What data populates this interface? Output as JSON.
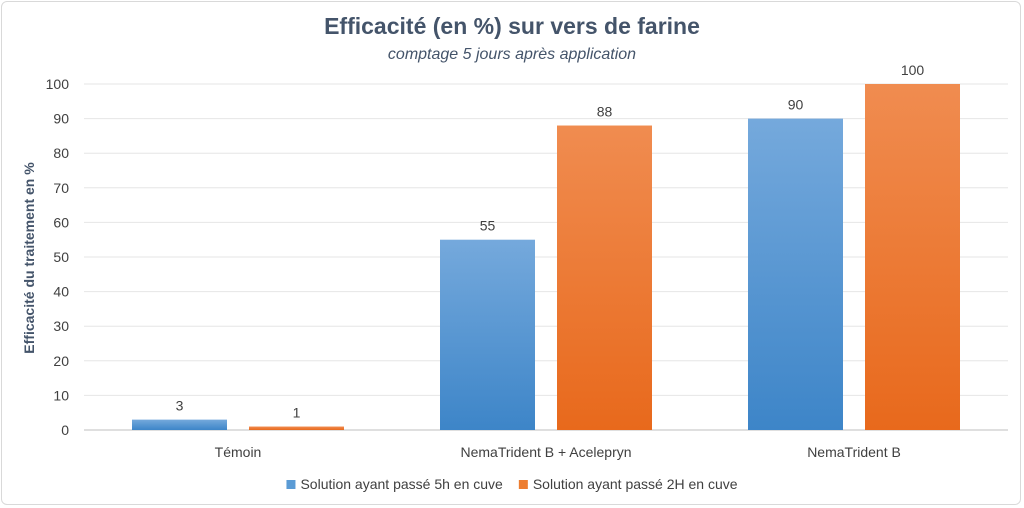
{
  "chart_data": {
    "type": "bar",
    "title": "Efficacité (en %) sur vers de farine",
    "subtitle": "comptage 5 jours après application",
    "xlabel": "",
    "ylabel": "Efficacité du traitement en %",
    "ylim": [
      0,
      100
    ],
    "yticks": [
      0,
      10,
      20,
      30,
      40,
      50,
      60,
      70,
      80,
      90,
      100
    ],
    "grid": true,
    "legend_position": "bottom",
    "categories": [
      "Témoin",
      "NemaTrident B + Acelepryn",
      "NemaTrident B"
    ],
    "series": [
      {
        "name": "Solution ayant passé 5h en cuve",
        "values": [
          3,
          55,
          90
        ],
        "color": "#5b9bd5"
      },
      {
        "name": "Solution ayant passé 2H en cuve",
        "values": [
          1,
          88,
          100
        ],
        "color": "#ed7d31"
      }
    ]
  }
}
